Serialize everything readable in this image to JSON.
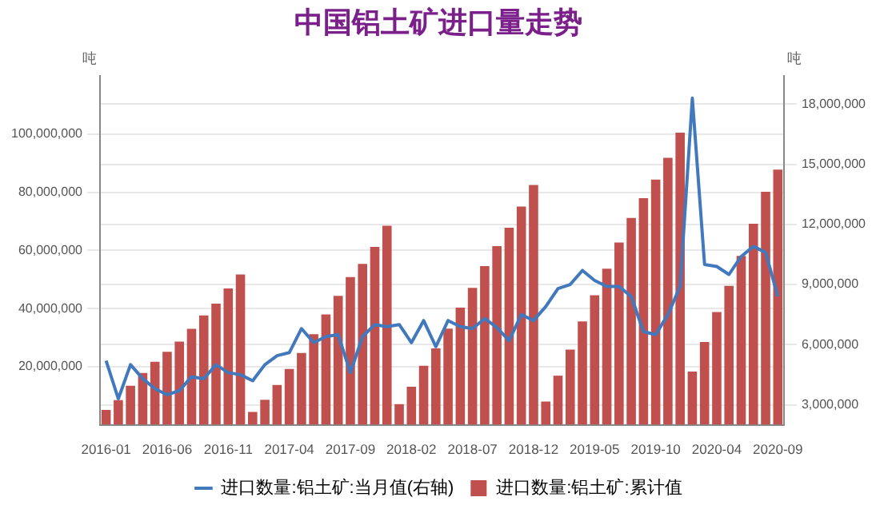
{
  "chart_data": {
    "type": "bar",
    "title": "中国铝土矿进口量走势",
    "ylabel": "吨",
    "y2label": "吨",
    "categories": [
      "2016-01",
      null,
      null,
      null,
      null,
      "2016-06",
      null,
      null,
      null,
      null,
      "2016-11",
      null,
      null,
      null,
      null,
      "2017-04",
      null,
      null,
      null,
      null,
      "2017-09",
      null,
      null,
      null,
      null,
      "2018-02",
      null,
      null,
      null,
      null,
      "2018-07",
      null,
      null,
      null,
      null,
      "2018-12",
      null,
      null,
      null,
      null,
      "2019-05",
      null,
      null,
      null,
      null,
      "2019-10",
      null,
      null,
      null,
      null,
      "2020-04",
      null,
      null,
      null,
      null,
      "2020-09"
    ],
    "series": [
      {
        "name": "进口数量:铝土矿:当月值(右轴)",
        "type": "line",
        "axis": "y2",
        "color": "#4279bd",
        "values": [
          5200000,
          3300000,
          5000000,
          4300000,
          3800000,
          3500000,
          3700000,
          4400000,
          4300000,
          5000000,
          4600000,
          4500000,
          4200000,
          5000000,
          5450000,
          5600000,
          6800000,
          6100000,
          6400000,
          6500000,
          4600000,
          6400000,
          7000000,
          6900000,
          7000000,
          6100000,
          7200000,
          5900000,
          7200000,
          6900000,
          6800000,
          7300000,
          6850000,
          6200000,
          7500000,
          7200000,
          7900000,
          8800000,
          9000000,
          9700000,
          9200000,
          8900000,
          8900000,
          8400000,
          6650000,
          6500000,
          7500000,
          8900000,
          18300000,
          10000000,
          9900000,
          9500000,
          10400000,
          10900000,
          10600000,
          8400000
        ]
      },
      {
        "name": "进口数量:铝土矿:累计值",
        "color": "#c0504d",
        "values": [
          5100000,
          8500000,
          13400000,
          17800000,
          21700000,
          25100000,
          28600000,
          33000000,
          37600000,
          41700000,
          46900000,
          51700000,
          4400000,
          8600000,
          13700000,
          19200000,
          24700000,
          31200000,
          38000000,
          44400000,
          50800000,
          55400000,
          61200000,
          68500000,
          7100000,
          13100000,
          20300000,
          26300000,
          33100000,
          40300000,
          47100000,
          54600000,
          61500000,
          67800000,
          75100000,
          82500000,
          8000000,
          16900000,
          25900000,
          35600000,
          44600000,
          53700000,
          62700000,
          71200000,
          78000000,
          84400000,
          91900000,
          100500000,
          18300000,
          28500000,
          38800000,
          47800000,
          58100000,
          69200000,
          80200000,
          87800000
        ]
      }
    ],
    "ylim": [
      0,
      120000000
    ],
    "yticks": [
      {
        "value": 20000000,
        "label": "20,000,000"
      },
      {
        "value": 40000000,
        "label": "40,000,000"
      },
      {
        "value": 60000000,
        "label": "60,000,000"
      },
      {
        "value": 80000000,
        "label": "80,000,000"
      },
      {
        "value": 100000000,
        "label": "100,000,000"
      }
    ],
    "y2lim": [
      2000000,
      19400000
    ],
    "y2ticks": [
      {
        "value": 3000000,
        "label": "3,000,000"
      },
      {
        "value": 6000000,
        "label": "6,000,000"
      },
      {
        "value": 9000000,
        "label": "9,000,000"
      },
      {
        "value": 12000000,
        "label": "12,000,000"
      },
      {
        "value": 15000000,
        "label": "15,000,000"
      },
      {
        "value": 18000000,
        "label": "18,000,000"
      }
    ],
    "grid": "y",
    "legend": "bottom",
    "marker": "none",
    "line_style": "solid"
  }
}
